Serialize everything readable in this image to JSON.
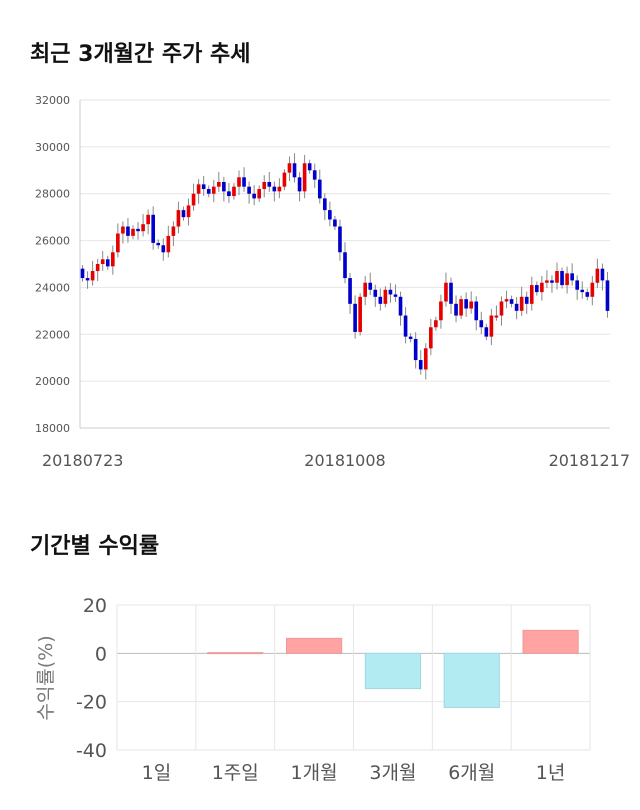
{
  "sections": {
    "price_title": "최근 3개월간 주가 추세",
    "returns_title": "기간별 수익률"
  },
  "colors": {
    "up": "#e60000",
    "down": "#0000cc",
    "positive_bar": "#ffa3a3",
    "negative_bar": "#b3ebf2",
    "grid": "#e6e6e6",
    "axis_text": "#555555"
  },
  "chart_data": [
    {
      "type": "candlestick",
      "title": "최근 3개월간 주가 추세",
      "ylim": [
        18000,
        32000
      ],
      "yticks": [
        18000,
        20000,
        22000,
        24000,
        26000,
        28000,
        30000,
        32000
      ],
      "xtick_labels": [
        "20180723",
        "20181008",
        "20181217"
      ],
      "grid": true,
      "closes": [
        24400,
        24300,
        24700,
        25000,
        25200,
        24900,
        25500,
        26300,
        26600,
        26200,
        26500,
        26400,
        26700,
        27100,
        25900,
        25800,
        25500,
        26200,
        26600,
        27300,
        27000,
        27500,
        28000,
        28400,
        28200,
        28000,
        28300,
        28500,
        28100,
        27900,
        28300,
        28700,
        28300,
        28000,
        27800,
        28200,
        28500,
        28300,
        28100,
        28300,
        28900,
        29300,
        28700,
        28100,
        29300,
        29000,
        28600,
        27800,
        27300,
        26900,
        26600,
        25500,
        24400,
        23300,
        22100,
        23600,
        24200,
        23900,
        23600,
        23300,
        23900,
        23700,
        23600,
        22800,
        21900,
        21800,
        20900,
        20500,
        21400,
        22300,
        22600,
        23400,
        24200,
        23300,
        22800,
        23500,
        23100,
        23400,
        22600,
        22300,
        21900,
        22800,
        22800,
        23400,
        23500,
        23300,
        23000,
        23600,
        23300,
        24100,
        23800,
        24200,
        24300,
        24200,
        24700,
        24100,
        24600,
        24300,
        23900,
        23800,
        23600,
        24200,
        24800,
        24300,
        23000
      ]
    },
    {
      "type": "bar",
      "title": "기간별 수익률",
      "categories": [
        "1일",
        "1주일",
        "1개월",
        "3개월",
        "6개월",
        "1년"
      ],
      "values": [
        0,
        0.3,
        6.2,
        -14.6,
        -22.4,
        9.5
      ],
      "ylabel": "수익률(%)",
      "ylim": [
        -40,
        20
      ],
      "yticks": [
        -40,
        -20,
        0,
        20
      ],
      "grid": true
    }
  ]
}
